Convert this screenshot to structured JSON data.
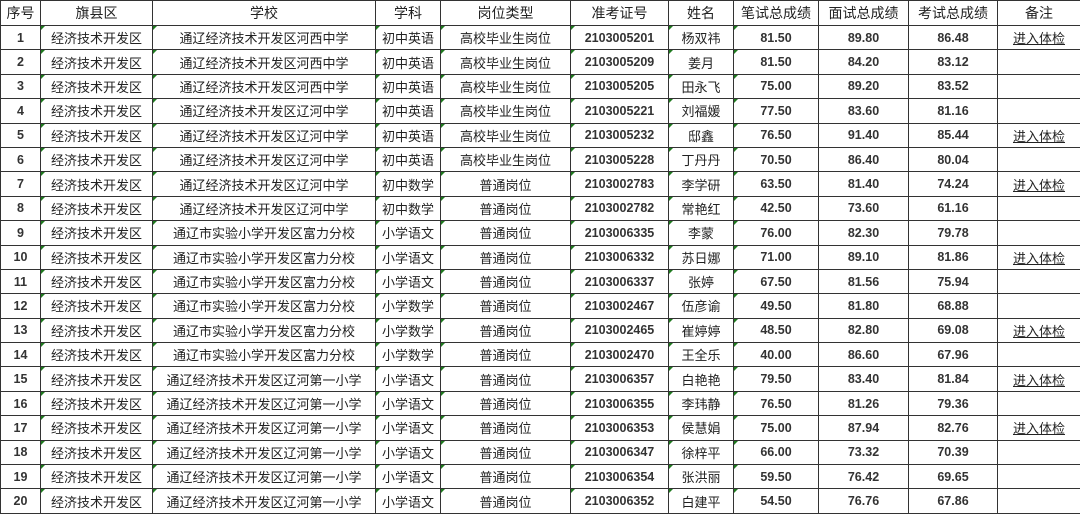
{
  "headers": [
    "序号",
    "旗县区",
    "学校",
    "学科",
    "岗位类型",
    "准考证号",
    "姓名",
    "笔试总成绩",
    "面试总成绩",
    "考试总成绩",
    "备注"
  ],
  "rows": [
    [
      "1",
      "经济技术开发区",
      "通辽经济技术开发区河西中学",
      "初中英语",
      "高校毕业生岗位",
      "2103005201",
      "杨双祎",
      "81.50",
      "89.80",
      "86.48",
      "进入体检"
    ],
    [
      "2",
      "经济技术开发区",
      "通辽经济技术开发区河西中学",
      "初中英语",
      "高校毕业生岗位",
      "2103005209",
      "姜月",
      "81.50",
      "84.20",
      "83.12",
      ""
    ],
    [
      "3",
      "经济技术开发区",
      "通辽经济技术开发区河西中学",
      "初中英语",
      "高校毕业生岗位",
      "2103005205",
      "田永飞",
      "75.00",
      "89.20",
      "83.52",
      ""
    ],
    [
      "4",
      "经济技术开发区",
      "通辽经济技术开发区辽河中学",
      "初中英语",
      "高校毕业生岗位",
      "2103005221",
      "刘福媛",
      "77.50",
      "83.60",
      "81.16",
      ""
    ],
    [
      "5",
      "经济技术开发区",
      "通辽经济技术开发区辽河中学",
      "初中英语",
      "高校毕业生岗位",
      "2103005232",
      "邸鑫",
      "76.50",
      "91.40",
      "85.44",
      "进入体检"
    ],
    [
      "6",
      "经济技术开发区",
      "通辽经济技术开发区辽河中学",
      "初中英语",
      "高校毕业生岗位",
      "2103005228",
      "丁丹丹",
      "70.50",
      "86.40",
      "80.04",
      ""
    ],
    [
      "7",
      "经济技术开发区",
      "通辽经济技术开发区辽河中学",
      "初中数学",
      "普通岗位",
      "2103002783",
      "李学研",
      "63.50",
      "81.40",
      "74.24",
      "进入体检"
    ],
    [
      "8",
      "经济技术开发区",
      "通辽经济技术开发区辽河中学",
      "初中数学",
      "普通岗位",
      "2103002782",
      "常艳红",
      "42.50",
      "73.60",
      "61.16",
      ""
    ],
    [
      "9",
      "经济技术开发区",
      "通辽市实验小学开发区富力分校",
      "小学语文",
      "普通岗位",
      "2103006335",
      "李蒙",
      "76.00",
      "82.30",
      "79.78",
      ""
    ],
    [
      "10",
      "经济技术开发区",
      "通辽市实验小学开发区富力分校",
      "小学语文",
      "普通岗位",
      "2103006332",
      "苏日娜",
      "71.00",
      "89.10",
      "81.86",
      "进入体检"
    ],
    [
      "11",
      "经济技术开发区",
      "通辽市实验小学开发区富力分校",
      "小学语文",
      "普通岗位",
      "2103006337",
      "张婷",
      "67.50",
      "81.56",
      "75.94",
      ""
    ],
    [
      "12",
      "经济技术开发区",
      "通辽市实验小学开发区富力分校",
      "小学数学",
      "普通岗位",
      "2103002467",
      "伍彦谕",
      "49.50",
      "81.80",
      "68.88",
      ""
    ],
    [
      "13",
      "经济技术开发区",
      "通辽市实验小学开发区富力分校",
      "小学数学",
      "普通岗位",
      "2103002465",
      "崔婷婷",
      "48.50",
      "82.80",
      "69.08",
      "进入体检"
    ],
    [
      "14",
      "经济技术开发区",
      "通辽市实验小学开发区富力分校",
      "小学数学",
      "普通岗位",
      "2103002470",
      "王全乐",
      "40.00",
      "86.60",
      "67.96",
      ""
    ],
    [
      "15",
      "经济技术开发区",
      "通辽经济技术开发区辽河第一小学",
      "小学语文",
      "普通岗位",
      "2103006357",
      "白艳艳",
      "79.50",
      "83.40",
      "81.84",
      "进入体检"
    ],
    [
      "16",
      "经济技术开发区",
      "通辽经济技术开发区辽河第一小学",
      "小学语文",
      "普通岗位",
      "2103006355",
      "李玮静",
      "76.50",
      "81.26",
      "79.36",
      ""
    ],
    [
      "17",
      "经济技术开发区",
      "通辽经济技术开发区辽河第一小学",
      "小学语文",
      "普通岗位",
      "2103006353",
      "侯慧娟",
      "75.00",
      "87.94",
      "82.76",
      "进入体检"
    ],
    [
      "18",
      "经济技术开发区",
      "通辽经济技术开发区辽河第一小学",
      "小学语文",
      "普通岗位",
      "2103006347",
      "徐梓平",
      "66.00",
      "73.32",
      "70.39",
      ""
    ],
    [
      "19",
      "经济技术开发区",
      "通辽经济技术开发区辽河第一小学",
      "小学语文",
      "普通岗位",
      "2103006354",
      "张洪丽",
      "59.50",
      "76.42",
      "69.65",
      ""
    ],
    [
      "20",
      "经济技术开发区",
      "通辽经济技术开发区辽河第一小学",
      "小学语文",
      "普通岗位",
      "2103006352",
      "白建平",
      "54.50",
      "76.76",
      "67.86",
      ""
    ]
  ]
}
